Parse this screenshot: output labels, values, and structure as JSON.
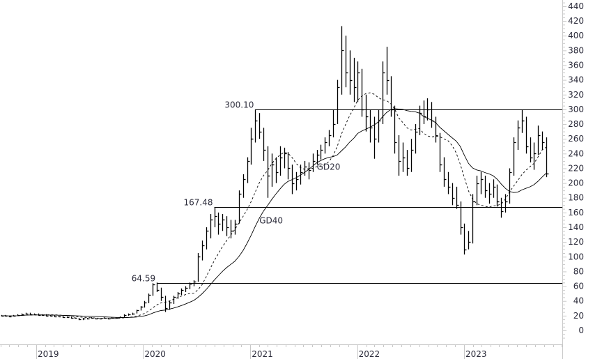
{
  "chart_data": {
    "type": "ohlc-bar",
    "title": "",
    "xlabel": "",
    "ylabel": "",
    "ylim": [
      -15,
      440
    ],
    "yticks": [
      0,
      20,
      40,
      60,
      80,
      100,
      120,
      140,
      160,
      180,
      200,
      220,
      240,
      260,
      280,
      300,
      320,
      340,
      360,
      380,
      400,
      420,
      440
    ],
    "xticks": [
      {
        "date": "2019-01-01",
        "label": "2019"
      },
      {
        "date": "2020-01-01",
        "label": "2020"
      },
      {
        "date": "2021-01-01",
        "label": "2021"
      },
      {
        "date": "2022-01-01",
        "label": "2022"
      },
      {
        "date": "2023-01-01",
        "label": "2023"
      }
    ],
    "grid": false,
    "bar_color": "#000000",
    "bar_fields": [
      "date",
      "high",
      "low",
      "close"
    ],
    "bars": [
      [
        "2018-09-03",
        21,
        19,
        20
      ],
      [
        "2018-09-17",
        21,
        19,
        20
      ],
      [
        "2018-10-01",
        20,
        18,
        19
      ],
      [
        "2018-10-15",
        21,
        19,
        20
      ],
      [
        "2018-10-29",
        22,
        20,
        21
      ],
      [
        "2018-11-12",
        23,
        21,
        22
      ],
      [
        "2018-11-26",
        24,
        22,
        23
      ],
      [
        "2018-12-10",
        24,
        21,
        22
      ],
      [
        "2018-12-24",
        23,
        21,
        22
      ],
      [
        "2019-01-07",
        23,
        20,
        21
      ],
      [
        "2019-01-21",
        22,
        20,
        21
      ],
      [
        "2019-02-04",
        22,
        19,
        20
      ],
      [
        "2019-02-18",
        21,
        19,
        20
      ],
      [
        "2019-03-04",
        21,
        18,
        19
      ],
      [
        "2019-03-18",
        20,
        18,
        19
      ],
      [
        "2019-04-01",
        20,
        17,
        18
      ],
      [
        "2019-04-15",
        19,
        17,
        18
      ],
      [
        "2019-04-29",
        19,
        16,
        17
      ],
      [
        "2019-05-13",
        18,
        16,
        17
      ],
      [
        "2019-05-27",
        17,
        14,
        15
      ],
      [
        "2019-06-10",
        17,
        14,
        16
      ],
      [
        "2019-06-24",
        17,
        15,
        16
      ],
      [
        "2019-07-08",
        18,
        16,
        17
      ],
      [
        "2019-07-22",
        17,
        15,
        16
      ],
      [
        "2019-08-05",
        17,
        15,
        16
      ],
      [
        "2019-08-19",
        18,
        16,
        17
      ],
      [
        "2019-09-02",
        17,
        15,
        16
      ],
      [
        "2019-09-16",
        18,
        16,
        17
      ],
      [
        "2019-09-30",
        18,
        16,
        17
      ],
      [
        "2019-10-14",
        19,
        17,
        18
      ],
      [
        "2019-10-28",
        22,
        18,
        21
      ],
      [
        "2019-11-11",
        23,
        20,
        22
      ],
      [
        "2019-11-25",
        24,
        21,
        23
      ],
      [
        "2019-12-09",
        28,
        23,
        27
      ],
      [
        "2019-12-23",
        33,
        27,
        32
      ],
      [
        "2020-01-06",
        40,
        31,
        38
      ],
      [
        "2020-01-20",
        50,
        37,
        48
      ],
      [
        "2020-02-03",
        64,
        47,
        62
      ],
      [
        "2020-02-17",
        65,
        52,
        55
      ],
      [
        "2020-03-02",
        58,
        40,
        45
      ],
      [
        "2020-03-16",
        47,
        25,
        30
      ],
      [
        "2020-03-30",
        40,
        28,
        38
      ],
      [
        "2020-04-13",
        47,
        36,
        45
      ],
      [
        "2020-04-27",
        52,
        43,
        50
      ],
      [
        "2020-05-11",
        57,
        48,
        55
      ],
      [
        "2020-05-25",
        60,
        52,
        58
      ],
      [
        "2020-06-08",
        65,
        56,
        63
      ],
      [
        "2020-06-22",
        68,
        60,
        66
      ],
      [
        "2020-07-06",
        105,
        66,
        100
      ],
      [
        "2020-07-20",
        122,
        95,
        115
      ],
      [
        "2020-08-03",
        140,
        110,
        135
      ],
      [
        "2020-08-17",
        158,
        125,
        150
      ],
      [
        "2020-08-31",
        167,
        140,
        155
      ],
      [
        "2020-09-14",
        160,
        130,
        145
      ],
      [
        "2020-09-28",
        158,
        135,
        150
      ],
      [
        "2020-10-12",
        155,
        128,
        140
      ],
      [
        "2020-10-26",
        150,
        125,
        135
      ],
      [
        "2020-11-09",
        150,
        130,
        145
      ],
      [
        "2020-11-23",
        190,
        145,
        185
      ],
      [
        "2020-12-07",
        212,
        180,
        205
      ],
      [
        "2020-12-21",
        235,
        200,
        230
      ],
      [
        "2021-01-04",
        275,
        225,
        260
      ],
      [
        "2021-01-18",
        300,
        255,
        285
      ],
      [
        "2021-02-01",
        295,
        260,
        270
      ],
      [
        "2021-02-15",
        275,
        230,
        245
      ],
      [
        "2021-03-01",
        250,
        180,
        210
      ],
      [
        "2021-03-15",
        240,
        195,
        225
      ],
      [
        "2021-03-29",
        235,
        200,
        215
      ],
      [
        "2021-04-12",
        250,
        210,
        235
      ],
      [
        "2021-04-26",
        248,
        220,
        240
      ],
      [
        "2021-05-10",
        242,
        205,
        220
      ],
      [
        "2021-05-24",
        225,
        185,
        200
      ],
      [
        "2021-06-07",
        215,
        190,
        205
      ],
      [
        "2021-06-21",
        225,
        198,
        215
      ],
      [
        "2021-07-05",
        230,
        210,
        222
      ],
      [
        "2021-07-19",
        228,
        205,
        218
      ],
      [
        "2021-08-02",
        240,
        215,
        230
      ],
      [
        "2021-08-16",
        245,
        225,
        238
      ],
      [
        "2021-08-30",
        252,
        232,
        245
      ],
      [
        "2021-09-13",
        262,
        240,
        255
      ],
      [
        "2021-09-27",
        272,
        250,
        265
      ],
      [
        "2021-10-11",
        300,
        262,
        280
      ],
      [
        "2021-10-25",
        340,
        280,
        330
      ],
      [
        "2021-11-08",
        413,
        320,
        380
      ],
      [
        "2021-11-22",
        400,
        330,
        350
      ],
      [
        "2021-12-06",
        380,
        320,
        340
      ],
      [
        "2021-12-20",
        370,
        310,
        330
      ],
      [
        "2022-01-03",
        365,
        310,
        350
      ],
      [
        "2022-01-17",
        355,
        290,
        300
      ],
      [
        "2022-01-31",
        320,
        270,
        290
      ],
      [
        "2022-02-14",
        300,
        255,
        275
      ],
      [
        "2022-02-28",
        290,
        233,
        260
      ],
      [
        "2022-03-14",
        300,
        255,
        285
      ],
      [
        "2022-03-28",
        365,
        280,
        350
      ],
      [
        "2022-04-11",
        385,
        320,
        340
      ],
      [
        "2022-04-25",
        345,
        290,
        300
      ],
      [
        "2022-05-09",
        305,
        240,
        255
      ],
      [
        "2022-05-23",
        265,
        210,
        230
      ],
      [
        "2022-06-06",
        255,
        215,
        235
      ],
      [
        "2022-06-20",
        245,
        210,
        220
      ],
      [
        "2022-07-04",
        260,
        215,
        245
      ],
      [
        "2022-07-18",
        280,
        240,
        270
      ],
      [
        "2022-08-01",
        305,
        265,
        295
      ],
      [
        "2022-08-15",
        312,
        280,
        290
      ],
      [
        "2022-08-29",
        315,
        285,
        300
      ],
      [
        "2022-09-12",
        310,
        275,
        285
      ],
      [
        "2022-09-26",
        290,
        255,
        265
      ],
      [
        "2022-10-10",
        268,
        215,
        225
      ],
      [
        "2022-10-24",
        235,
        195,
        205
      ],
      [
        "2022-11-07",
        215,
        185,
        195
      ],
      [
        "2022-11-21",
        200,
        170,
        180
      ],
      [
        "2022-12-05",
        195,
        165,
        170
      ],
      [
        "2022-12-19",
        175,
        130,
        140
      ],
      [
        "2023-01-02",
        145,
        103,
        110
      ],
      [
        "2023-01-16",
        135,
        110,
        120
      ],
      [
        "2023-01-30",
        185,
        118,
        175
      ],
      [
        "2023-02-13",
        210,
        170,
        200
      ],
      [
        "2023-02-27",
        215,
        185,
        205
      ],
      [
        "2023-03-13",
        210,
        180,
        190
      ],
      [
        "2023-03-27",
        200,
        172,
        185
      ],
      [
        "2023-04-10",
        205,
        180,
        195
      ],
      [
        "2023-04-24",
        198,
        168,
        175
      ],
      [
        "2023-05-08",
        180,
        153,
        162
      ],
      [
        "2023-05-22",
        185,
        160,
        175
      ],
      [
        "2023-06-05",
        220,
        172,
        215
      ],
      [
        "2023-06-19",
        262,
        210,
        255
      ],
      [
        "2023-07-03",
        285,
        245,
        275
      ],
      [
        "2023-07-17",
        300,
        268,
        285
      ],
      [
        "2023-07-31",
        290,
        240,
        250
      ],
      [
        "2023-08-14",
        262,
        228,
        235
      ],
      [
        "2023-08-28",
        255,
        218,
        240
      ],
      [
        "2023-09-11",
        278,
        238,
        265
      ],
      [
        "2023-09-25",
        270,
        245,
        255
      ],
      [
        "2023-10-09",
        262,
        208,
        213
      ]
    ],
    "moving_averages": [
      {
        "name": "GD20",
        "weeks": 20,
        "style": "dashed",
        "label_at": {
          "date": "2021-08-16",
          "value": 218
        }
      },
      {
        "name": "GD40",
        "weeks": 40,
        "style": "solid",
        "label_at": {
          "date": "2021-02-01",
          "value": 145
        }
      }
    ],
    "levels": [
      {
        "value": 300.1,
        "label": "300.10",
        "from": "2021-01-18"
      },
      {
        "value": 167.48,
        "label": "167.48",
        "from": "2020-08-31"
      },
      {
        "value": 64.59,
        "label": "64.59",
        "from": "2020-02-17"
      }
    ]
  }
}
